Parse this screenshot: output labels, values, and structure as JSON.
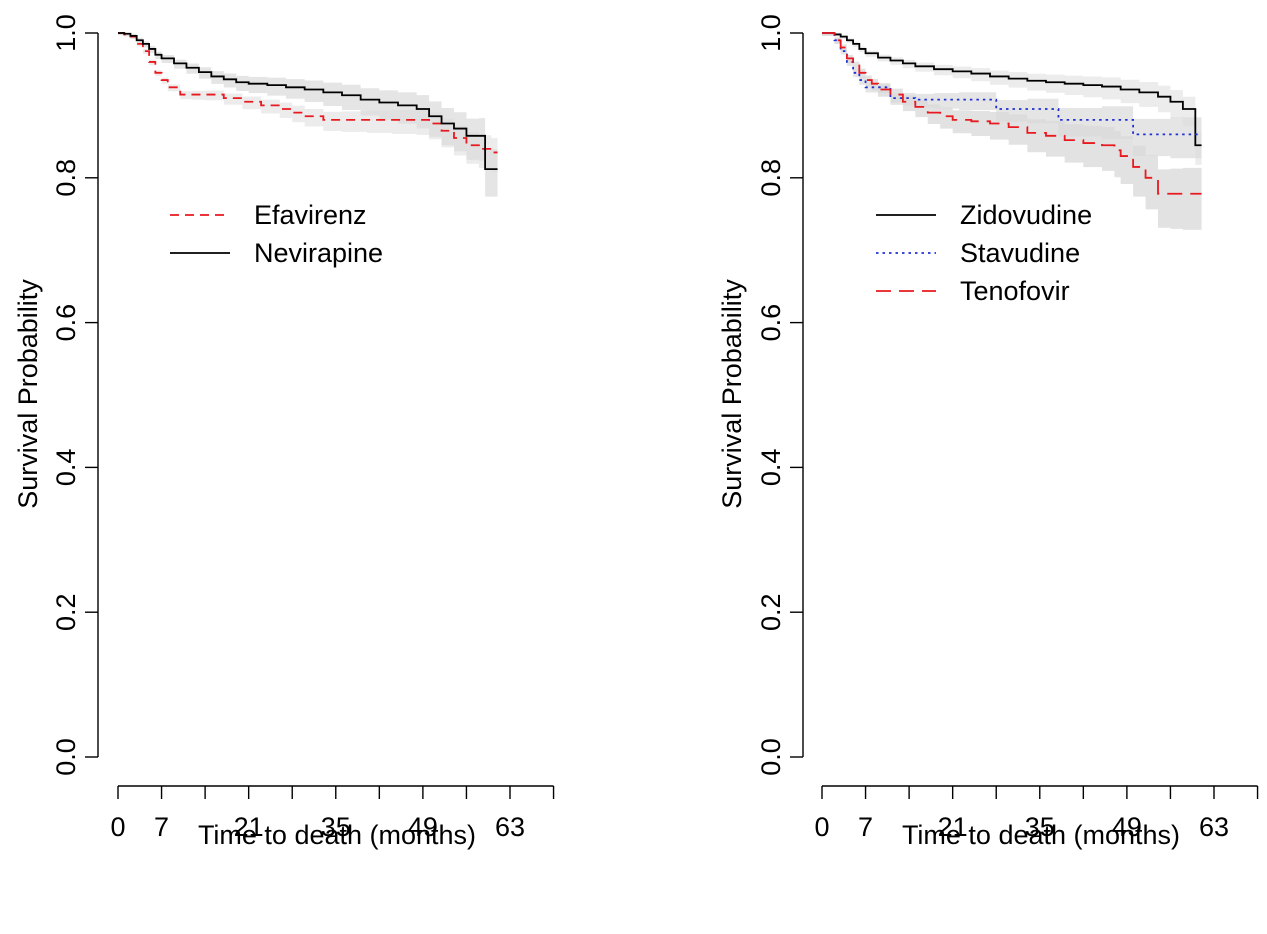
{
  "chart_data": [
    {
      "type": "line",
      "subtype": "kaplan-meier",
      "title": "",
      "xlabel": "Time to death (months)",
      "ylabel": "Survival Probability",
      "xlim": [
        0,
        63
      ],
      "ylim": [
        0.0,
        1.0
      ],
      "x_ticks": [
        0,
        7,
        14,
        21,
        28,
        35,
        42,
        49,
        56,
        63,
        70
      ],
      "x_tick_labels": [
        "0",
        "7",
        "",
        "21",
        "",
        "35",
        "",
        "49",
        "",
        "63",
        ""
      ],
      "y_ticks": [
        0.0,
        0.2,
        0.4,
        0.6,
        0.8,
        1.0
      ],
      "y_tick_labels": [
        "0.0",
        "0.2",
        "0.4",
        "0.6",
        "0.8",
        "1.0"
      ],
      "grid": false,
      "legend_position": "upper-left",
      "series": [
        {
          "name": "Efavirenz",
          "color": "#e8191f",
          "dash": "dashed",
          "x": [
            0,
            1,
            2,
            3,
            4,
            5,
            6,
            7,
            8,
            10,
            12,
            14,
            17,
            20,
            23,
            26,
            28,
            30,
            33,
            36,
            40,
            44,
            48,
            50,
            52,
            54,
            56,
            58,
            60,
            61
          ],
          "y": [
            1.0,
            0.998,
            0.995,
            0.985,
            0.975,
            0.96,
            0.945,
            0.935,
            0.925,
            0.915,
            0.915,
            0.915,
            0.91,
            0.905,
            0.9,
            0.895,
            0.89,
            0.885,
            0.88,
            0.88,
            0.88,
            0.88,
            0.88,
            0.875,
            0.865,
            0.855,
            0.845,
            0.84,
            0.835,
            0.835
          ]
        },
        {
          "name": "Nevirapine",
          "color": "#000000",
          "dash": "solid",
          "x": [
            0,
            1,
            2,
            3,
            4,
            5,
            6,
            7,
            9,
            11,
            13,
            15,
            17,
            19,
            21,
            24,
            27,
            30,
            33,
            36,
            39,
            42,
            45,
            48,
            50,
            52,
            54,
            56,
            58,
            59,
            61
          ],
          "y": [
            1.0,
            0.999,
            0.996,
            0.99,
            0.985,
            0.978,
            0.97,
            0.965,
            0.958,
            0.952,
            0.946,
            0.94,
            0.936,
            0.932,
            0.93,
            0.928,
            0.925,
            0.922,
            0.918,
            0.914,
            0.908,
            0.904,
            0.9,
            0.895,
            0.885,
            0.875,
            0.868,
            0.858,
            0.858,
            0.812,
            0.812
          ]
        }
      ]
    },
    {
      "type": "line",
      "subtype": "kaplan-meier",
      "title": "",
      "xlabel": "Time to death (months)",
      "ylabel": "Survival Probability",
      "xlim": [
        0,
        63
      ],
      "ylim": [
        0.0,
        1.0
      ],
      "x_ticks": [
        0,
        7,
        14,
        21,
        28,
        35,
        42,
        49,
        56,
        63,
        70
      ],
      "x_tick_labels": [
        "0",
        "7",
        "",
        "21",
        "",
        "35",
        "",
        "49",
        "",
        "63",
        ""
      ],
      "y_ticks": [
        0.0,
        0.2,
        0.4,
        0.6,
        0.8,
        1.0
      ],
      "y_tick_labels": [
        "0.0",
        "0.2",
        "0.4",
        "0.6",
        "0.8",
        "1.0"
      ],
      "grid": false,
      "legend_position": "upper-left",
      "series": [
        {
          "name": "Zidovudine",
          "color": "#000000",
          "dash": "solid",
          "x": [
            0,
            2,
            3,
            4,
            5,
            6,
            7,
            9,
            11,
            13,
            15,
            18,
            21,
            24,
            27,
            30,
            33,
            36,
            39,
            42,
            45,
            48,
            51,
            54,
            56,
            58,
            60,
            61
          ],
          "y": [
            1.0,
            0.998,
            0.995,
            0.99,
            0.985,
            0.978,
            0.972,
            0.966,
            0.962,
            0.958,
            0.954,
            0.95,
            0.947,
            0.944,
            0.94,
            0.937,
            0.934,
            0.932,
            0.93,
            0.928,
            0.926,
            0.922,
            0.918,
            0.912,
            0.905,
            0.895,
            0.845,
            0.845
          ]
        },
        {
          "name": "Stavudine",
          "color": "#1f2fd6",
          "dash": "dotted",
          "x": [
            0,
            2,
            3,
            4,
            5,
            6,
            7,
            9,
            11,
            13,
            15,
            18,
            22,
            28,
            33,
            38,
            45,
            50,
            56,
            61
          ],
          "y": [
            1.0,
            0.99,
            0.975,
            0.96,
            0.945,
            0.935,
            0.925,
            0.925,
            0.91,
            0.91,
            0.908,
            0.908,
            0.908,
            0.895,
            0.895,
            0.88,
            0.88,
            0.86,
            0.86,
            0.86
          ]
        },
        {
          "name": "Tenofovir",
          "color": "#e8191f",
          "dash": "longdash",
          "x": [
            0,
            2,
            3,
            4,
            5,
            6,
            7,
            8,
            9,
            11,
            13,
            15,
            17,
            19,
            21,
            24,
            27,
            30,
            33,
            36,
            39,
            42,
            45,
            47,
            48,
            50,
            52,
            54,
            56,
            58,
            61
          ],
          "y": [
            1.0,
            0.99,
            0.98,
            0.965,
            0.955,
            0.945,
            0.935,
            0.93,
            0.922,
            0.915,
            0.905,
            0.898,
            0.89,
            0.885,
            0.88,
            0.878,
            0.875,
            0.87,
            0.862,
            0.858,
            0.852,
            0.848,
            0.845,
            0.838,
            0.83,
            0.815,
            0.8,
            0.778,
            0.778,
            0.778,
            0.778
          ]
        }
      ]
    }
  ]
}
